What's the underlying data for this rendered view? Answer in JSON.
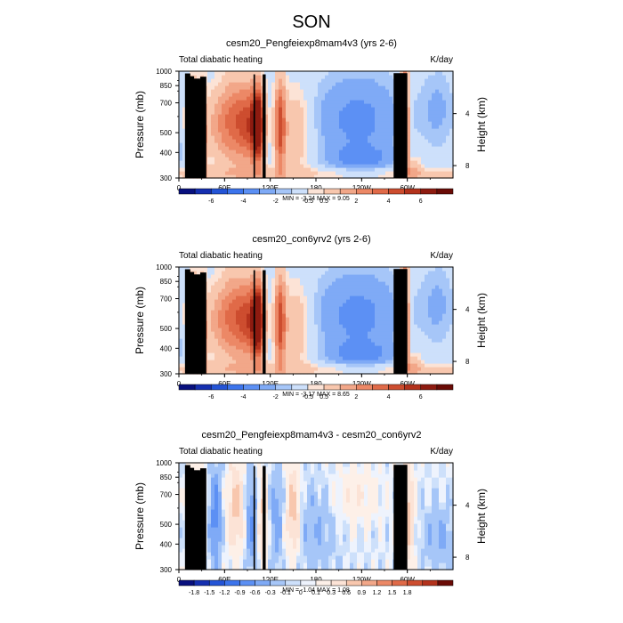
{
  "suptitle": "SON",
  "colors": {
    "land": "#000000",
    "axis": "#000000"
  },
  "chart_data": [
    {
      "type": "heatmap",
      "title": "cesm20_Pengfeiexp8mam4v3 (yrs 2-6)",
      "left_string": "Total diabatic heating",
      "right_string": "K/day",
      "ylabel": "Pressure (mb)",
      "ylabel_right": "Height (km)",
      "xlabel": "",
      "x_ticklabels": [
        "0",
        "60E",
        "120E",
        "180",
        "120W",
        "60W"
      ],
      "y_ticklabels": [
        "300",
        "400",
        "500",
        "700",
        "850",
        "1000"
      ],
      "y_values": [
        300,
        400,
        500,
        700,
        850,
        1000
      ],
      "y_scale": "log",
      "ylim": [
        1000,
        300
      ],
      "xlim": [
        0,
        360
      ],
      "height_ticklabels": [
        "8",
        "4"
      ],
      "stats": "MIN = -3.24  MAX =  9.05",
      "min": -3.24,
      "max": 9.05,
      "colorbar_levels": [
        "-6",
        "-4",
        "-2",
        "-0.5",
        "0.5",
        "2",
        "4",
        "6"
      ],
      "colorbar_colors": [
        "#08107e",
        "#152fb0",
        "#2454d6",
        "#3c74ec",
        "#5c90f4",
        "#7faaf6",
        "#a6c6f8",
        "#cde0fb",
        "#fce3d6",
        "#f8c7ae",
        "#f2a789",
        "#ec8866",
        "#e06a48",
        "#cd4d2f",
        "#b3321c",
        "#8e1b10",
        "#6a0b06"
      ],
      "colorbar_values": [
        -7,
        -6,
        -5,
        -4,
        -3,
        -2,
        -1,
        -0.5,
        0.5,
        1,
        2,
        3,
        4,
        5,
        6,
        7
      ]
    },
    {
      "type": "heatmap",
      "title": "cesm20_con6yrv2 (yrs 2-6)",
      "left_string": "Total diabatic heating",
      "right_string": "K/day",
      "ylabel": "Pressure (mb)",
      "ylabel_right": "Height (km)",
      "xlabel": "",
      "x_ticklabels": [
        "0",
        "60E",
        "120E",
        "180",
        "120W",
        "60W"
      ],
      "y_ticklabels": [
        "300",
        "400",
        "500",
        "700",
        "850",
        "1000"
      ],
      "y_values": [
        300,
        400,
        500,
        700,
        850,
        1000
      ],
      "y_scale": "log",
      "ylim": [
        1000,
        300
      ],
      "xlim": [
        0,
        360
      ],
      "height_ticklabels": [
        "8",
        "4"
      ],
      "stats": "MIN = -3.17  MAX =  8.65",
      "min": -3.17,
      "max": 8.65,
      "colorbar_levels": [
        "-6",
        "-4",
        "-2",
        "-0.5",
        "0.5",
        "2",
        "4",
        "6"
      ],
      "colorbar_colors": [
        "#08107e",
        "#152fb0",
        "#2454d6",
        "#3c74ec",
        "#5c90f4",
        "#7faaf6",
        "#a6c6f8",
        "#cde0fb",
        "#fce3d6",
        "#f8c7ae",
        "#f2a789",
        "#ec8866",
        "#e06a48",
        "#cd4d2f",
        "#b3321c",
        "#8e1b10",
        "#6a0b06"
      ],
      "colorbar_values": [
        -7,
        -6,
        -5,
        -4,
        -3,
        -2,
        -1,
        -0.5,
        0.5,
        1,
        2,
        3,
        4,
        5,
        6,
        7
      ]
    },
    {
      "type": "heatmap",
      "title": "cesm20_Pengfeiexp8mam4v3 - cesm20_con6yrv2",
      "left_string": "Total diabatic heating",
      "right_string": "K/day",
      "ylabel": "Pressure (mb)",
      "ylabel_right": "Height (km)",
      "xlabel": "",
      "x_ticklabels": [
        "0",
        "60E",
        "120E",
        "180",
        "120W",
        "60W"
      ],
      "y_ticklabels": [
        "300",
        "400",
        "500",
        "700",
        "850",
        "1000"
      ],
      "y_values": [
        300,
        400,
        500,
        700,
        850,
        1000
      ],
      "y_scale": "log",
      "ylim": [
        1000,
        300
      ],
      "xlim": [
        0,
        360
      ],
      "height_ticklabels": [
        "8",
        "4"
      ],
      "stats": "MIN = -1.04  MAX =  1.08",
      "min": -1.04,
      "max": 1.08,
      "colorbar_levels": [
        "-1.8",
        "-1.5",
        "-1.2",
        "-0.9",
        "-0.6",
        "-0.3",
        "-0.1",
        "0",
        "0.1",
        "0.3",
        "0.6",
        "0.9",
        "1.2",
        "1.5",
        "1.8"
      ],
      "colorbar_colors": [
        "#08107e",
        "#152fb0",
        "#2454d6",
        "#3c74ec",
        "#5c90f4",
        "#7faaf6",
        "#a6c6f8",
        "#cde0fb",
        "#eef3fd",
        "#fdf0e8",
        "#fce3d6",
        "#f8c7ae",
        "#f2a789",
        "#ec8866",
        "#e06a48",
        "#cd4d2f",
        "#b3321c",
        "#6a0b06"
      ],
      "colorbar_values": [
        -2.1,
        -1.8,
        -1.5,
        -1.2,
        -0.9,
        -0.6,
        -0.3,
        -0.1,
        0,
        0.1,
        0.3,
        0.6,
        0.9,
        1.2,
        1.5,
        1.8,
        2.1
      ]
    }
  ]
}
